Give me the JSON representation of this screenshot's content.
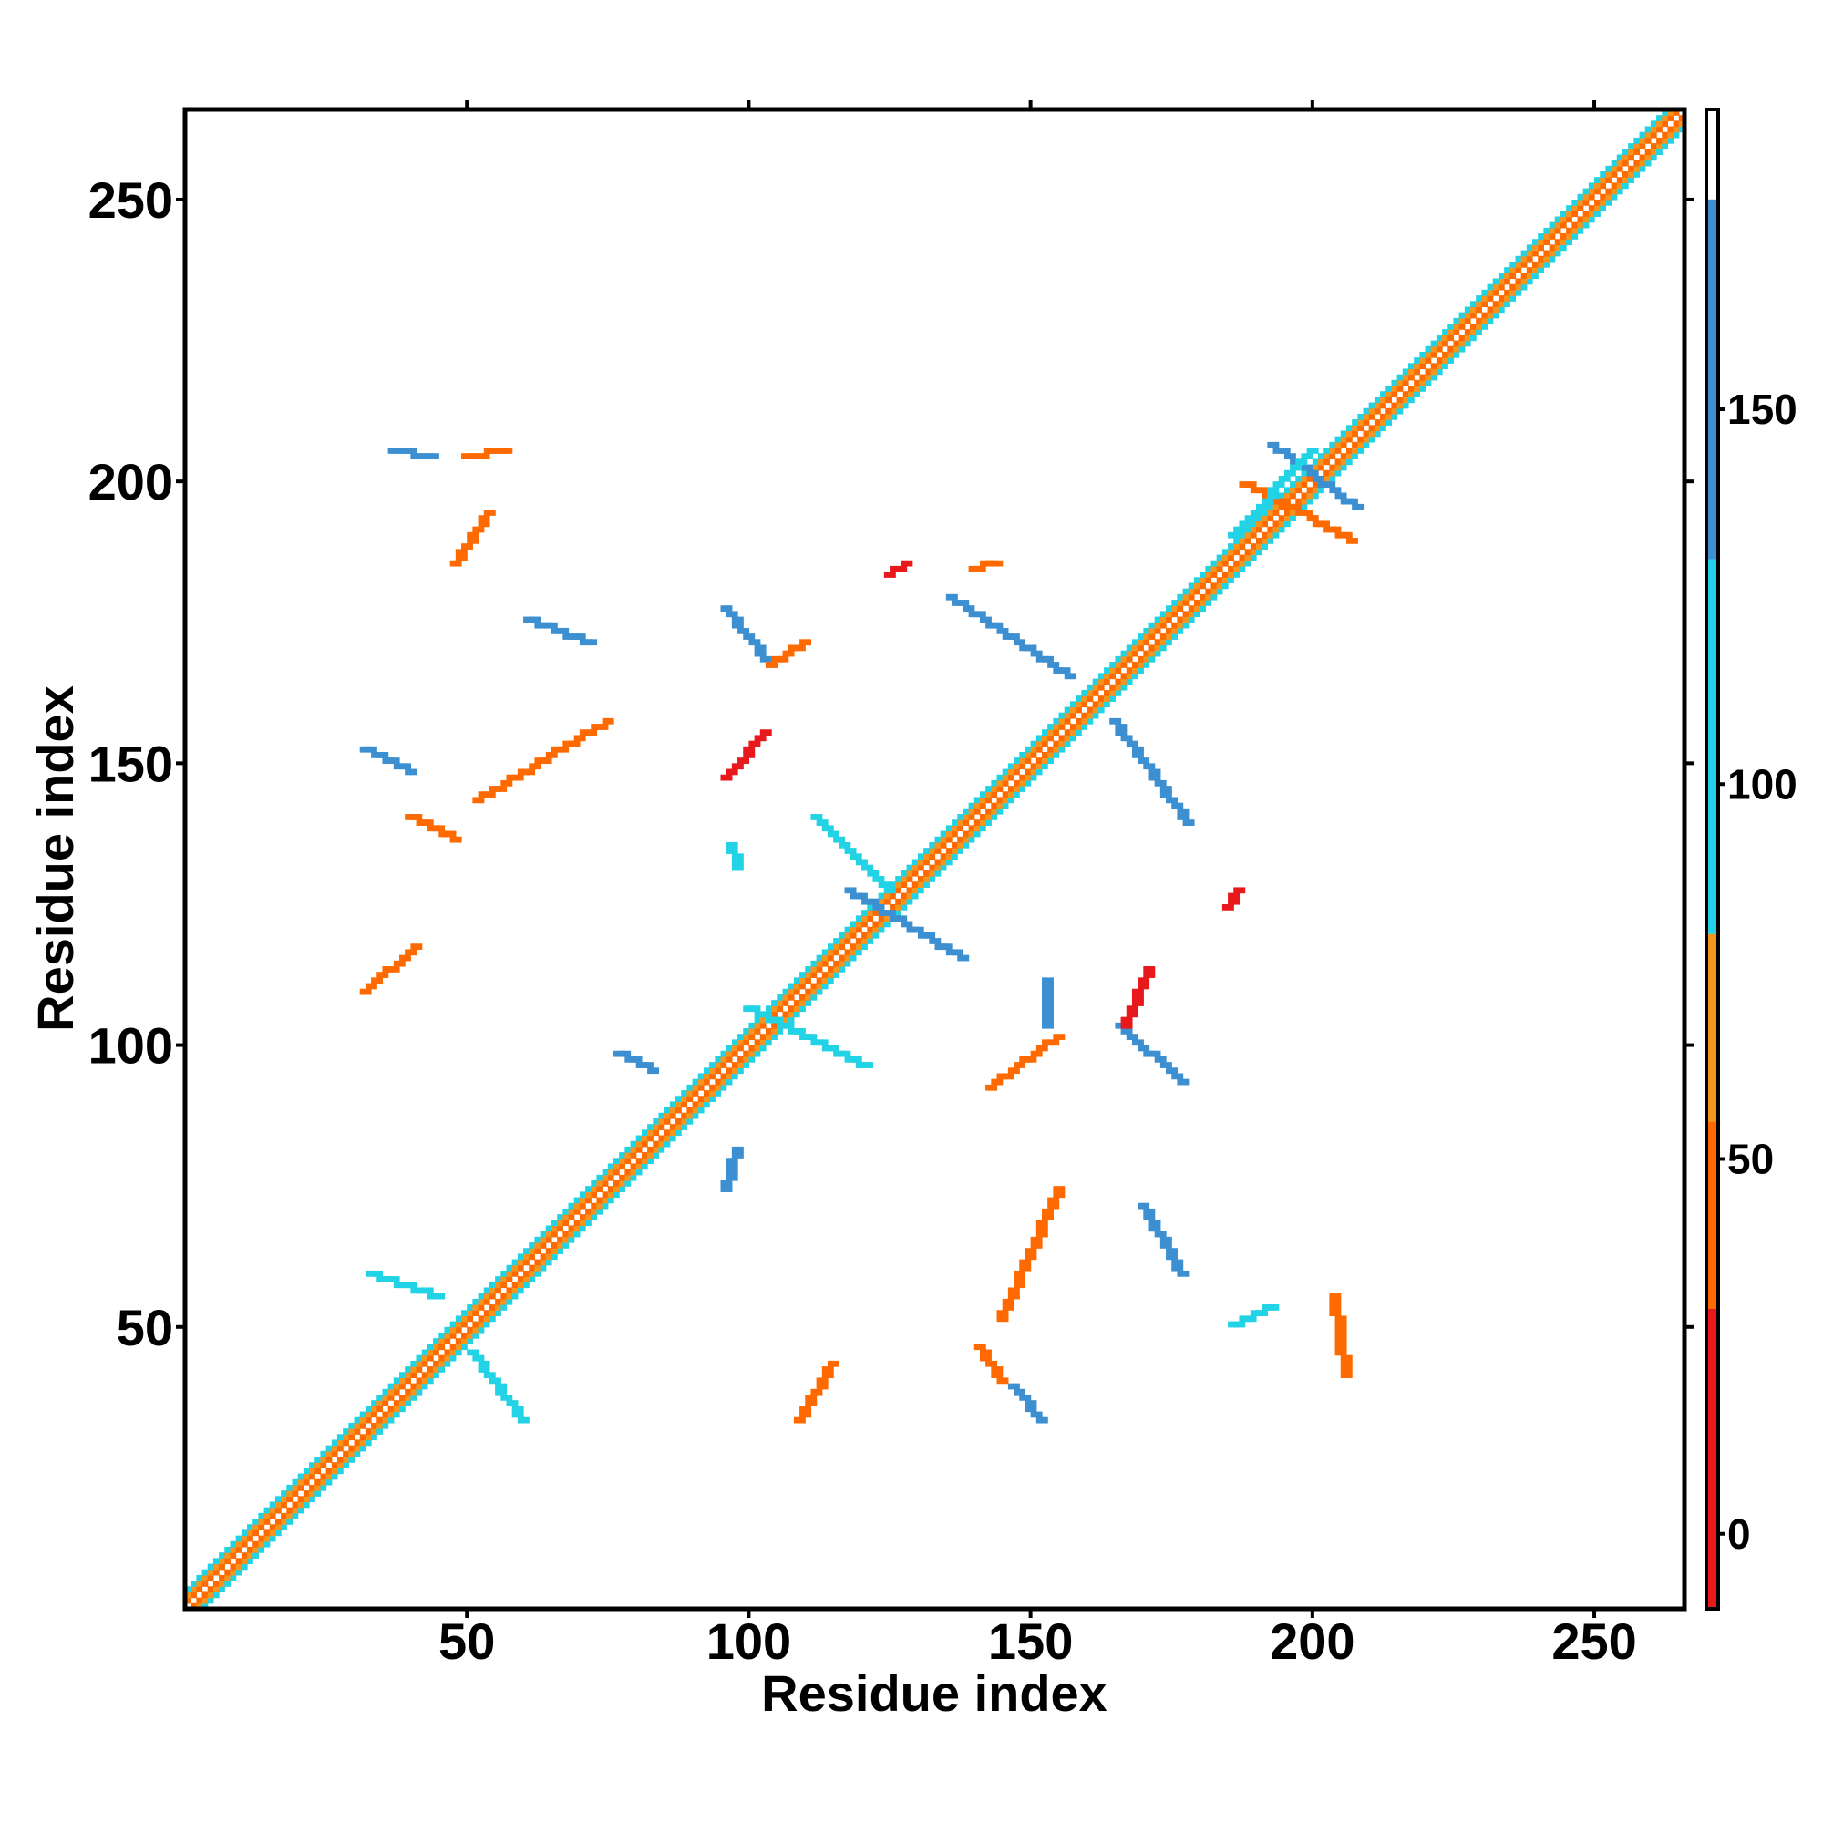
{
  "chart_data": {
    "type": "heatmap",
    "xlabel": "Residue index",
    "ylabel": "Residue index",
    "xlim": [
      0,
      266
    ],
    "ylim": [
      0,
      266
    ],
    "x_ticks": [
      50,
      100,
      150,
      200,
      250
    ],
    "y_ticks": [
      50,
      100,
      150,
      200,
      250
    ],
    "colorbar": {
      "range": [
        -10,
        190
      ],
      "ticks": [
        0,
        50,
        100,
        150
      ],
      "bands": [
        {
          "from": -10,
          "to": 30,
          "color": "#e8191c"
        },
        {
          "from": 30,
          "to": 55,
          "color": "#ff6a00"
        },
        {
          "from": 55,
          "to": 80,
          "color": "#f7941d"
        },
        {
          "from": 80,
          "to": 130,
          "color": "#22d3e6"
        },
        {
          "from": 130,
          "to": 178,
          "color": "#3c8fd0"
        },
        {
          "from": 178,
          "to": 190,
          "color": "#ffffff"
        }
      ]
    },
    "diagonal": {
      "from": 1,
      "to": 266,
      "halfwidth": 3,
      "values": [
        5,
        45,
        70,
        100,
        150
      ]
    },
    "contacts": [
      {
        "x": [
          96,
          104
        ],
        "y": [
          178,
          168
        ],
        "value": 150
      },
      {
        "x": [
          104,
          110
        ],
        "y": [
          168,
          172
        ],
        "value": 40
      },
      {
        "x": [
          136,
          157
        ],
        "y": [
          180,
          166
        ],
        "value": 150
      },
      {
        "x": [
          165,
          178
        ],
        "y": [
          158,
          140
        ],
        "value": 150
      },
      {
        "x": [
          166,
          177
        ],
        "y": [
          104,
          94
        ],
        "value": 150
      },
      {
        "x": [
          167,
          171
        ],
        "y": [
          104,
          114
        ],
        "value": 20
      },
      {
        "x": [
          145,
          155
        ],
        "y": [
          52,
          75
        ],
        "value": 40
      },
      {
        "x": [
          52,
          75
        ],
        "y": [
          144,
          158
        ],
        "value": 45
      },
      {
        "x": [
          186,
          193
        ],
        "y": [
          51,
          54
        ],
        "value": 100
      },
      {
        "x": [
          48,
          54
        ],
        "y": [
          186,
          195
        ],
        "value": 45
      },
      {
        "x": [
          109,
          115
        ],
        "y": [
          34,
          44
        ],
        "value": 40
      },
      {
        "x": [
          32,
          41
        ],
        "y": [
          110,
          118
        ],
        "value": 40
      },
      {
        "x": [
          143,
          155
        ],
        "y": [
          93,
          102
        ],
        "value": 30
      },
      {
        "x": [
          100,
          121
        ],
        "y": [
          107,
          97
        ],
        "value": 100
      },
      {
        "x": [
          118,
          138
        ],
        "y": [
          128,
          116
        ],
        "value": 150
      },
      {
        "x": [
          112,
          125
        ],
        "y": [
          141,
          128
        ],
        "value": 100
      },
      {
        "x": [
          193,
          208
        ],
        "y": [
          207,
          196
        ],
        "value": 150
      },
      {
        "x": [
          188,
          200
        ],
        "y": [
          200,
          194
        ],
        "value": 45
      },
      {
        "x": [
          33,
          45
        ],
        "y": [
          60,
          56
        ],
        "value": 100
      },
      {
        "x": [
          51,
          60
        ],
        "y": [
          46,
          34
        ],
        "value": 100
      },
      {
        "x": [
          200,
          207
        ],
        "y": [
          194,
          190
        ],
        "value": 40
      },
      {
        "x": [
          170,
          177
        ],
        "y": [
          72,
          60
        ],
        "value": 150
      },
      {
        "x": [
          61,
          72
        ],
        "y": [
          176,
          172
        ],
        "value": 150
      },
      {
        "x": [
          96,
          103
        ],
        "y": [
          148,
          156
        ],
        "value": 20
      },
      {
        "x": [
          186,
          200
        ],
        "y": [
          191,
          206
        ],
        "value": 100
      },
      {
        "x": [
          40,
          48
        ],
        "y": [
          141,
          137
        ],
        "value": 45
      },
      {
        "x": [
          147,
          152
        ],
        "y": [
          40,
          34
        ],
        "value": 150
      },
      {
        "x": [
          141,
          145
        ],
        "y": [
          47,
          41
        ],
        "value": 40
      },
      {
        "x": [
          204,
          206
        ],
        "y": [
          56,
          42
        ],
        "value": 45
      },
      {
        "x": [
          37,
          44
        ],
        "y": [
          206,
          205
        ],
        "value": 150
      },
      {
        "x": [
          50,
          57
        ],
        "y": [
          205,
          206
        ],
        "value": 40
      },
      {
        "x": [
          153,
          153
        ],
        "y": [
          104,
          112
        ],
        "value": 150
      },
      {
        "x": [
          185,
          187
        ],
        "y": [
          125,
          128
        ],
        "value": 20
      },
      {
        "x": [
          96,
          98
        ],
        "y": [
          75,
          82
        ],
        "value": 150
      },
      {
        "x": [
          77,
          83
        ],
        "y": [
          99,
          96
        ],
        "value": 150
      },
      {
        "x": [
          125,
          128
        ],
        "y": [
          184,
          186
        ],
        "value": 20
      },
      {
        "x": [
          140,
          144
        ],
        "y": [
          185,
          186
        ],
        "value": 40
      },
      {
        "x": [
          97,
          98
        ],
        "y": [
          136,
          132
        ],
        "value": 100
      },
      {
        "x": [
          32,
          40
        ],
        "y": [
          153,
          149
        ],
        "value": 150
      }
    ]
  }
}
